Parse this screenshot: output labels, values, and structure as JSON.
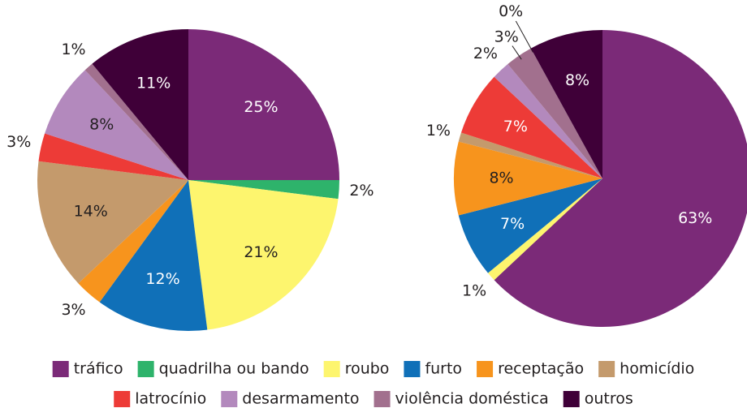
{
  "chart_data": [
    {
      "type": "pie",
      "categories": [
        "tráfico",
        "quadrilha ou bando",
        "roubo",
        "furto",
        "receptação",
        "homicídio",
        "latrocínio",
        "desarmamento",
        "violência doméstica",
        "outros"
      ],
      "values": [
        25,
        2,
        21,
        12,
        3,
        14,
        3,
        8,
        1,
        11
      ],
      "value_labels": [
        "25%",
        "2%",
        "21%",
        "12%",
        "3%",
        "14%",
        "3%",
        "8%",
        "1%",
        "11%"
      ],
      "colors": [
        "#7b2a78",
        "#2eb36b",
        "#fdf56e",
        "#1070b8",
        "#f7941d",
        "#c49a6c",
        "#ed3b37",
        "#b389bd",
        "#a2708e",
        "#3f0038"
      ],
      "legend": true
    },
    {
      "type": "pie",
      "categories": [
        "tráfico",
        "roubo",
        "furto",
        "receptação",
        "homicídio",
        "latrocínio",
        "desarmamento",
        "violência doméstica",
        "quadrilha ou bando",
        "outros"
      ],
      "values": [
        63,
        1,
        7,
        8,
        1,
        7,
        2,
        3,
        0,
        8
      ],
      "value_labels": [
        "63%",
        "1%",
        "7%",
        "8%",
        "1%",
        "7%",
        "2%",
        "3%",
        "0%",
        "8%"
      ],
      "colors": [
        "#7b2a78",
        "#fdf56e",
        "#1070b8",
        "#f7941d",
        "#c49a6c",
        "#ed3b37",
        "#b389bd",
        "#a2708e",
        "#2eb36b",
        "#3f0038"
      ],
      "legend": false
    }
  ]
}
